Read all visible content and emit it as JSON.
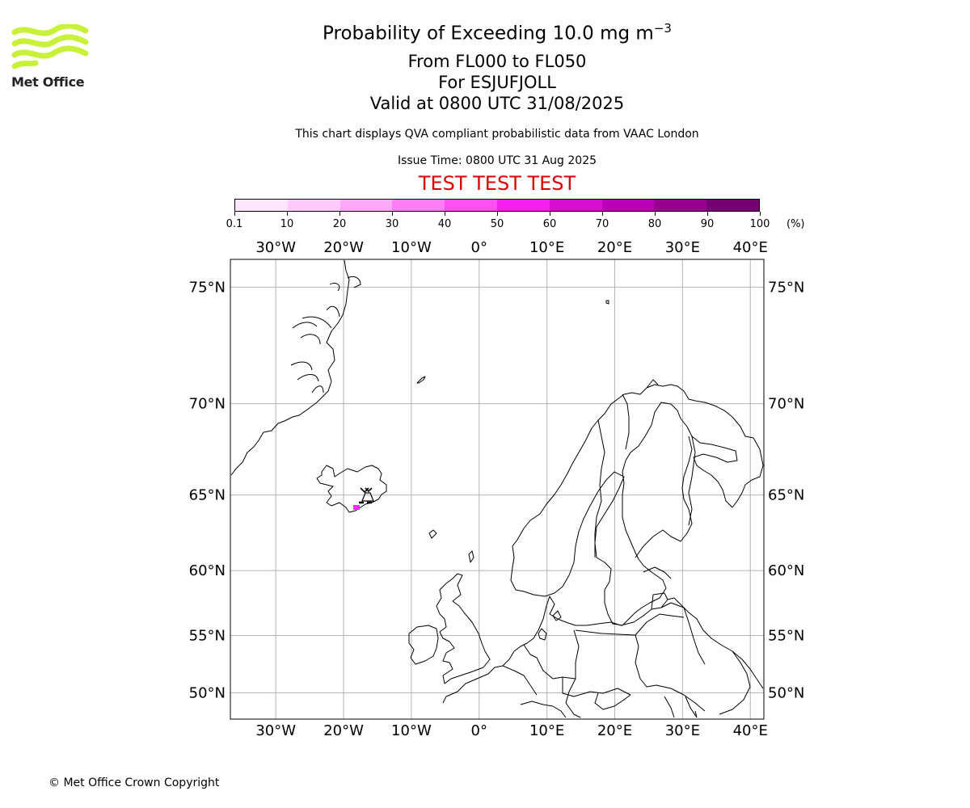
{
  "header": {
    "title_main": "Probability of Exceeding 10.0 mg m",
    "title_superscript": "−3",
    "level_range": "From FL000 to FL050",
    "volcano": "For ESJUFJOLL",
    "valid_time": "Valid at 0800 UTC 31/08/2025",
    "subtitle": "This chart displays QVA compliant probabilistic data from VAAC London",
    "issue_time": "Issue Time: 0800 UTC 31 Aug 2025",
    "test_banner": "TEST TEST TEST"
  },
  "logo": {
    "text": "Met Office",
    "color": "#c8f23a"
  },
  "colorbar": {
    "unit": "(%)",
    "tick_labels": [
      "0.1",
      "10",
      "20",
      "30",
      "40",
      "50",
      "60",
      "70",
      "80",
      "90",
      "100"
    ],
    "colors": [
      "#ffe5fd",
      "#ffc9fb",
      "#ffa8f7",
      "#ff7ef5",
      "#ff50f2",
      "#f520f0",
      "#d40fcf",
      "#b800b4",
      "#97008f",
      "#760073"
    ]
  },
  "map": {
    "lon_labels": [
      "30°W",
      "20°W",
      "10°W",
      "0°",
      "10°E",
      "20°E",
      "30°E",
      "40°E"
    ],
    "lat_labels": [
      "75°N",
      "70°N",
      "65°N",
      "60°N",
      "55°N",
      "50°N"
    ],
    "lon_values": [
      -30,
      -20,
      -10,
      0,
      10,
      20,
      30,
      40
    ],
    "lat_values": [
      75,
      70,
      65,
      60,
      55,
      50
    ],
    "lon_range": [
      -36.7,
      42
    ],
    "lat_range": [
      47.5,
      76
    ],
    "volcano_symbol_name": "volcano-symbol",
    "ash_patch_color": "#f035ee",
    "ash_patch_probability_band": "40-50"
  },
  "footer": {
    "copyright": "© Met Office Crown Copyright"
  }
}
